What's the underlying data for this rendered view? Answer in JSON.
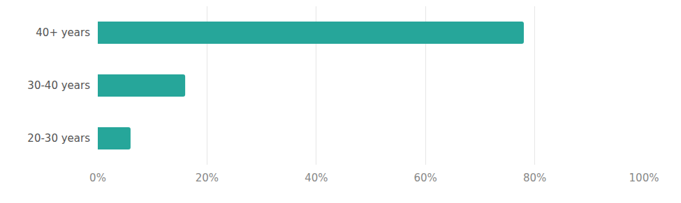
{
  "chart_data": {
    "type": "bar",
    "orientation": "horizontal",
    "categories": [
      "40+ years",
      "30-40 years",
      "20-30 years"
    ],
    "values": [
      78,
      16,
      6
    ],
    "color": "#26a69a",
    "xlim": [
      0,
      100
    ],
    "xticks": [
      {
        "value": 0,
        "label": "0%"
      },
      {
        "value": 20,
        "label": "20%"
      },
      {
        "value": 40,
        "label": "40%"
      },
      {
        "value": 60,
        "label": "60%"
      },
      {
        "value": 80,
        "label": "80%"
      },
      {
        "value": 100,
        "label": "100%"
      }
    ],
    "grid": true
  }
}
